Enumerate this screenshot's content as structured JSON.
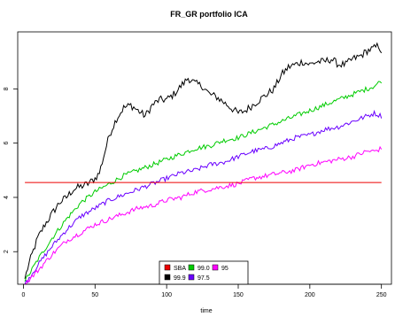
{
  "chart_data": {
    "type": "line",
    "title": "FR_GR portfolio ICA",
    "xlabel": "time",
    "ylabel": "",
    "xlim": [
      -4,
      257
    ],
    "ylim": [
      0.8,
      10.1
    ],
    "x_ticks": [
      0,
      50,
      100,
      150,
      200,
      250
    ],
    "y_ticks": [
      2,
      4,
      6,
      8
    ],
    "grid": false,
    "legend_position": "bottom-center",
    "series": [
      {
        "name": "99.9",
        "color": "#000000",
        "style": "noisy",
        "points": [
          [
            1,
            1.0
          ],
          [
            3,
            1.4
          ],
          [
            6,
            1.9
          ],
          [
            10,
            2.5
          ],
          [
            15,
            3.0
          ],
          [
            20,
            3.4
          ],
          [
            25,
            3.8
          ],
          [
            30,
            4.0
          ],
          [
            35,
            4.3
          ],
          [
            40,
            4.4
          ],
          [
            45,
            4.5
          ],
          [
            50,
            4.7
          ],
          [
            53,
            4.9
          ],
          [
            56,
            5.5
          ],
          [
            60,
            6.3
          ],
          [
            65,
            6.9
          ],
          [
            70,
            7.3
          ],
          [
            75,
            7.4
          ],
          [
            80,
            7.2
          ],
          [
            85,
            7.0
          ],
          [
            90,
            7.4
          ],
          [
            95,
            7.6
          ],
          [
            100,
            7.6
          ],
          [
            105,
            7.8
          ],
          [
            110,
            8.1
          ],
          [
            115,
            8.4
          ],
          [
            120,
            8.2
          ],
          [
            125,
            8.1
          ],
          [
            130,
            7.8
          ],
          [
            135,
            7.7
          ],
          [
            140,
            7.5
          ],
          [
            145,
            7.3
          ],
          [
            150,
            7.1
          ],
          [
            155,
            7.2
          ],
          [
            160,
            7.4
          ],
          [
            165,
            7.6
          ],
          [
            170,
            7.8
          ],
          [
            175,
            8.0
          ],
          [
            180,
            8.5
          ],
          [
            185,
            8.8
          ],
          [
            190,
            8.9
          ],
          [
            195,
            9.0
          ],
          [
            200,
            8.9
          ],
          [
            205,
            9.0
          ],
          [
            210,
            9.0
          ],
          [
            215,
            9.1
          ],
          [
            220,
            8.9
          ],
          [
            225,
            8.9
          ],
          [
            230,
            9.1
          ],
          [
            235,
            9.2
          ],
          [
            240,
            9.4
          ],
          [
            245,
            9.5
          ],
          [
            248,
            9.6
          ],
          [
            250,
            9.4
          ]
        ]
      },
      {
        "name": "99.0",
        "color": "#00cc00",
        "style": "noisy",
        "points": [
          [
            1,
            0.9
          ],
          [
            10,
            1.7
          ],
          [
            20,
            2.5
          ],
          [
            30,
            3.2
          ],
          [
            40,
            3.8
          ],
          [
            50,
            4.2
          ],
          [
            60,
            4.5
          ],
          [
            70,
            4.8
          ],
          [
            80,
            5.0
          ],
          [
            90,
            5.2
          ],
          [
            100,
            5.4
          ],
          [
            110,
            5.6
          ],
          [
            120,
            5.8
          ],
          [
            130,
            5.9
          ],
          [
            140,
            6.1
          ],
          [
            150,
            6.2
          ],
          [
            160,
            6.4
          ],
          [
            170,
            6.6
          ],
          [
            180,
            6.8
          ],
          [
            190,
            7.0
          ],
          [
            200,
            7.2
          ],
          [
            210,
            7.4
          ],
          [
            220,
            7.6
          ],
          [
            230,
            7.8
          ],
          [
            240,
            8.0
          ],
          [
            245,
            8.1
          ],
          [
            250,
            8.3
          ]
        ]
      },
      {
        "name": "97.5",
        "color": "#6a00ff",
        "style": "noisy",
        "points": [
          [
            1,
            0.8
          ],
          [
            10,
            1.5
          ],
          [
            20,
            2.2
          ],
          [
            30,
            2.8
          ],
          [
            40,
            3.3
          ],
          [
            50,
            3.6
          ],
          [
            60,
            3.9
          ],
          [
            70,
            4.1
          ],
          [
            80,
            4.3
          ],
          [
            90,
            4.5
          ],
          [
            100,
            4.7
          ],
          [
            110,
            4.9
          ],
          [
            120,
            5.0
          ],
          [
            130,
            5.2
          ],
          [
            140,
            5.3
          ],
          [
            150,
            5.5
          ],
          [
            160,
            5.7
          ],
          [
            170,
            5.8
          ],
          [
            180,
            6.0
          ],
          [
            190,
            6.2
          ],
          [
            200,
            6.3
          ],
          [
            210,
            6.5
          ],
          [
            220,
            6.6
          ],
          [
            230,
            6.8
          ],
          [
            240,
            7.0
          ],
          [
            245,
            7.1
          ],
          [
            250,
            7.0
          ]
        ]
      },
      {
        "name": "95",
        "color": "#ff00ff",
        "style": "noisy",
        "points": [
          [
            1,
            0.8
          ],
          [
            10,
            1.3
          ],
          [
            20,
            1.9
          ],
          [
            30,
            2.4
          ],
          [
            40,
            2.7
          ],
          [
            50,
            3.0
          ],
          [
            60,
            3.2
          ],
          [
            70,
            3.4
          ],
          [
            80,
            3.6
          ],
          [
            90,
            3.7
          ],
          [
            100,
            3.9
          ],
          [
            110,
            4.0
          ],
          [
            120,
            4.2
          ],
          [
            130,
            4.3
          ],
          [
            140,
            4.4
          ],
          [
            150,
            4.5
          ],
          [
            160,
            4.7
          ],
          [
            170,
            4.8
          ],
          [
            180,
            4.9
          ],
          [
            190,
            5.0
          ],
          [
            200,
            5.2
          ],
          [
            210,
            5.3
          ],
          [
            220,
            5.4
          ],
          [
            230,
            5.5
          ],
          [
            240,
            5.7
          ],
          [
            245,
            5.7
          ],
          [
            250,
            5.8
          ]
        ]
      },
      {
        "name": "SBA",
        "color": "#ee0000",
        "style": "flat",
        "points": [
          [
            1,
            4.55
          ],
          [
            250,
            4.55
          ]
        ]
      }
    ],
    "legend": [
      {
        "label": "SBA",
        "color": "#ee0000"
      },
      {
        "label": "99.0",
        "color": "#00cc00"
      },
      {
        "label": "95",
        "color": "#ff00ff"
      },
      {
        "label": "99.9",
        "color": "#000000"
      },
      {
        "label": "97.5",
        "color": "#6a00ff"
      }
    ]
  }
}
